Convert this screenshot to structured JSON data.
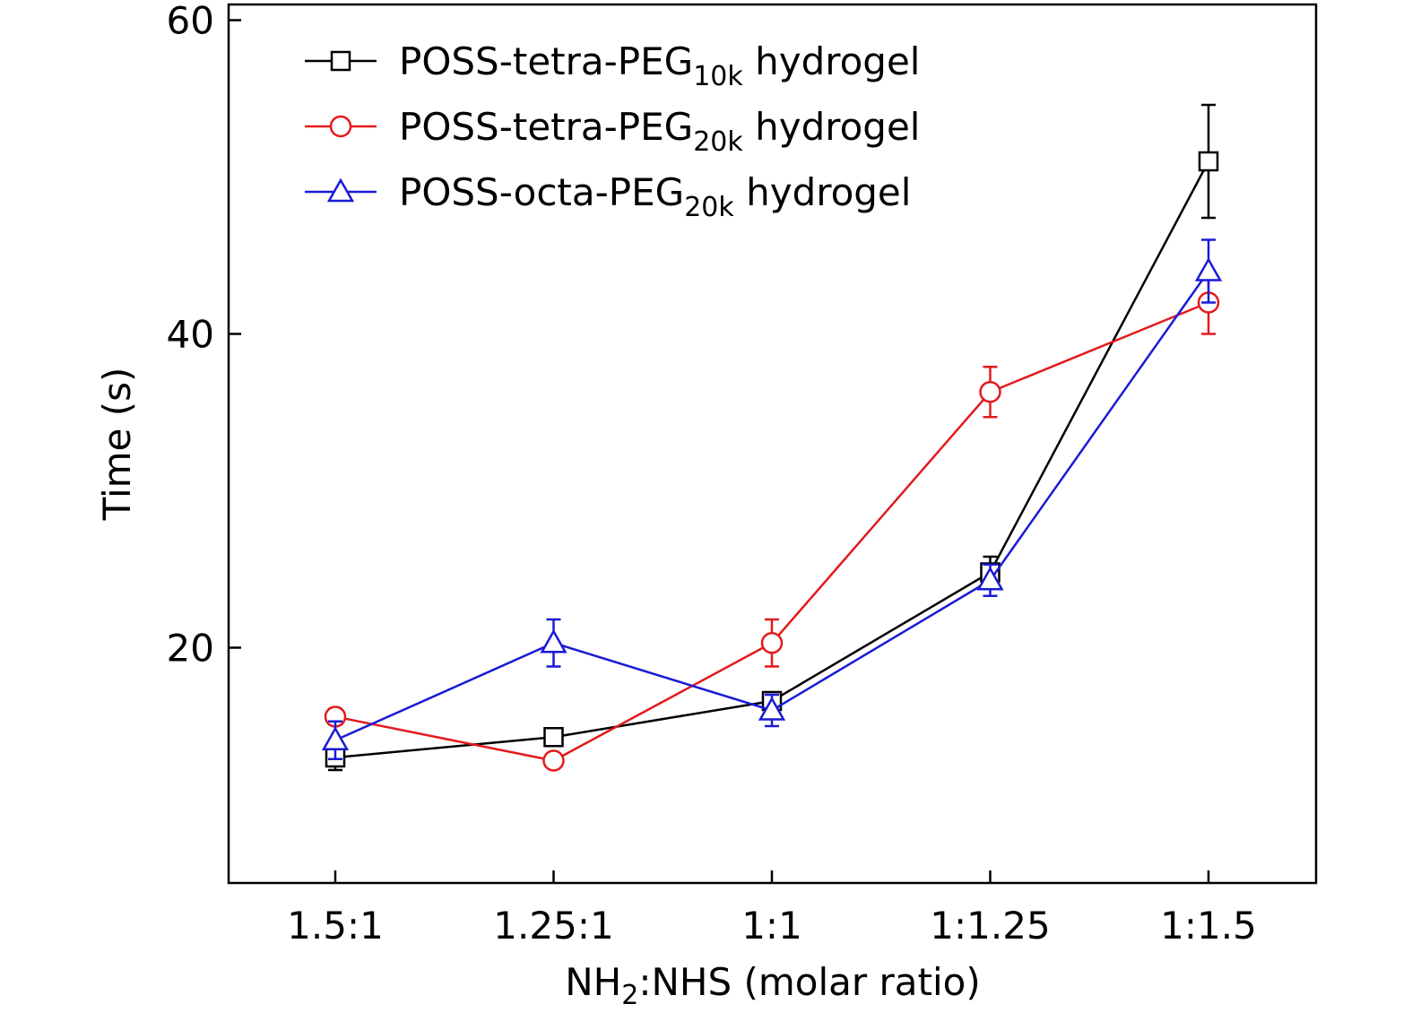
{
  "chart_data": {
    "type": "line",
    "title": "",
    "xlabel": {
      "main": "NH",
      "sub": "2",
      "rest": ":NHS (molar ratio)"
    },
    "ylabel": "Time (s)",
    "categories": [
      "1.5:1",
      "1.25:1",
      "1:1",
      "1:1.25",
      "1:1.5"
    ],
    "ylim": [
      5,
      61
    ],
    "yticks": [
      20,
      40,
      60
    ],
    "legend_position": "top-left",
    "series": [
      {
        "name": "POSS-tetra-PEG10k hydrogel",
        "label_main": "POSS-tetra-PEG",
        "label_sub": "10k",
        "label_tail": " hydrogel",
        "color": "#000000",
        "marker": "square",
        "values": [
          13.0,
          14.3,
          16.6,
          24.8,
          51.0
        ],
        "errors": [
          0.8,
          0.3,
          0.5,
          1.0,
          3.6
        ]
      },
      {
        "name": "POSS-tetra-PEG20k hydrogel",
        "label_main": "POSS-tetra-PEG",
        "label_sub": "20k",
        "label_tail": " hydrogel",
        "color": "#e31a1c",
        "marker": "circle",
        "values": [
          15.6,
          12.8,
          20.3,
          36.3,
          42.0
        ],
        "errors": [
          0.5,
          0.3,
          1.5,
          1.6,
          2.0
        ]
      },
      {
        "name": "POSS-octa-PEG20k hydrogel",
        "label_main": "POSS-octa-PEG",
        "label_sub": "20k",
        "label_tail": " hydrogel",
        "color": "#1a1ad6",
        "marker": "triangle",
        "values": [
          14.1,
          20.3,
          16.0,
          24.3,
          44.0
        ],
        "errors": [
          1.2,
          1.5,
          1.0,
          1.0,
          2.0
        ]
      }
    ]
  }
}
